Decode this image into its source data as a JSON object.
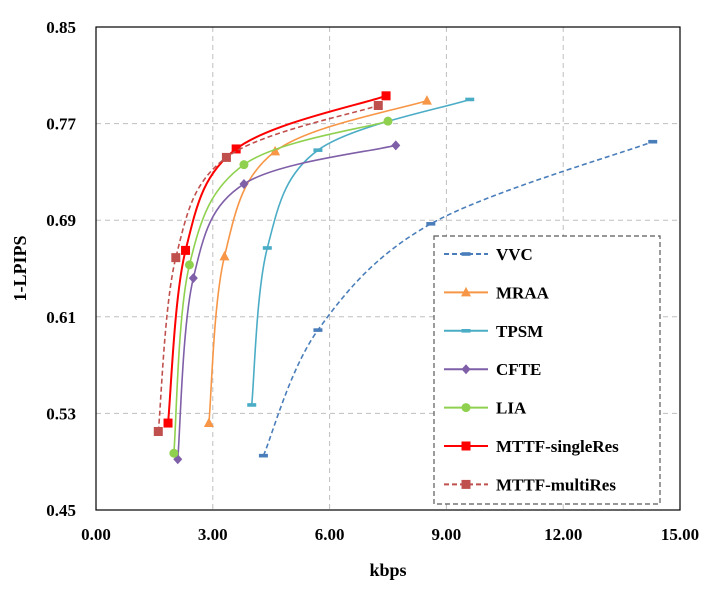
{
  "chart_data": {
    "type": "line",
    "title": "",
    "xlabel": "kbps",
    "ylabel": "1-LPIPS",
    "xlim": [
      0,
      15
    ],
    "ylim": [
      0.45,
      0.85
    ],
    "x_ticks": [
      0,
      3,
      6,
      9,
      12,
      15
    ],
    "x_tick_labels": [
      "0.00",
      "3.00",
      "6.00",
      "9.00",
      "12.00",
      "15.00"
    ],
    "y_ticks": [
      0.45,
      0.53,
      0.61,
      0.69,
      0.77,
      0.85
    ],
    "y_tick_labels": [
      "0.45",
      "0.53",
      "0.61",
      "0.69",
      "0.77",
      "0.85"
    ],
    "grid": true,
    "legend_position": "bottom-right",
    "series": [
      {
        "name": "VVC",
        "color": "#4a7ebb",
        "dashed": true,
        "marker": "dash",
        "points": [
          [
            4.3,
            0.495
          ],
          [
            5.7,
            0.599
          ],
          [
            8.6,
            0.687
          ],
          [
            14.3,
            0.755
          ]
        ]
      },
      {
        "name": "MRAA",
        "color": "#f79646",
        "dashed": false,
        "marker": "triangle",
        "points": [
          [
            2.9,
            0.522
          ],
          [
            3.3,
            0.66
          ],
          [
            4.6,
            0.747
          ],
          [
            8.5,
            0.789
          ]
        ]
      },
      {
        "name": "TPSM",
        "color": "#4bacc6",
        "dashed": false,
        "marker": "dash",
        "points": [
          [
            4.0,
            0.537
          ],
          [
            4.4,
            0.667
          ],
          [
            5.7,
            0.748
          ],
          [
            9.6,
            0.79
          ]
        ]
      },
      {
        "name": "CFTE",
        "color": "#7f5fa8",
        "dashed": false,
        "marker": "diamond",
        "points": [
          [
            2.1,
            0.492
          ],
          [
            2.5,
            0.642
          ],
          [
            3.8,
            0.72
          ],
          [
            7.7,
            0.752
          ]
        ]
      },
      {
        "name": "LIA",
        "color": "#8fd14f",
        "dashed": false,
        "marker": "circle",
        "points": [
          [
            2.0,
            0.497
          ],
          [
            2.4,
            0.653
          ],
          [
            3.8,
            0.736
          ],
          [
            7.5,
            0.772
          ]
        ]
      },
      {
        "name": "MTTF-singleRes",
        "color": "#ff0000",
        "dashed": false,
        "marker": "square",
        "points": [
          [
            1.85,
            0.522
          ],
          [
            2.3,
            0.665
          ],
          [
            3.6,
            0.749
          ],
          [
            7.45,
            0.793
          ]
        ]
      },
      {
        "name": "MTTF-multiRes",
        "color": "#c0504d",
        "dashed": true,
        "marker": "square",
        "points": [
          [
            1.6,
            0.515
          ],
          [
            2.05,
            0.659
          ],
          [
            3.35,
            0.742
          ],
          [
            7.25,
            0.785
          ]
        ]
      }
    ]
  }
}
